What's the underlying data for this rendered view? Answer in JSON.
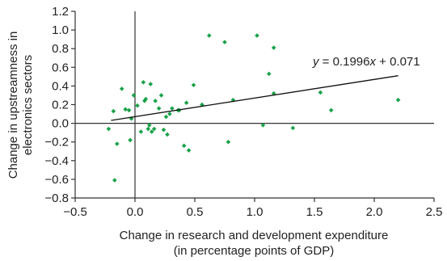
{
  "chart_data": {
    "type": "scatter",
    "xlabel_line1": "Change in research and development expenditure",
    "xlabel_line2": "(in percentage points of GDP)",
    "ylabel_line1": "Change in upstreamness in",
    "ylabel_line2": "electronics sectors",
    "xlim": [
      -0.5,
      2.5
    ],
    "ylim": [
      -0.8,
      1.2
    ],
    "xticks": [
      -0.5,
      0.0,
      0.5,
      1.0,
      1.5,
      2.0,
      2.5
    ],
    "xtick_labels": [
      "−0.5",
      "0.0",
      "0.5",
      "1.0",
      "1.5",
      "2.0",
      "2.5"
    ],
    "yticks": [
      -0.8,
      -0.6,
      -0.4,
      -0.2,
      0.0,
      0.2,
      0.4,
      0.6,
      0.8,
      1.0,
      1.2
    ],
    "ytick_labels": [
      "−0.8",
      "−0.6",
      "−0.4",
      "−0.2",
      "0.0",
      "0.2",
      "0.4",
      "0.6",
      "0.8",
      "1.0",
      "1.2"
    ],
    "marker_color": "#1aa34a",
    "trend_color": "#111111",
    "trendline": {
      "slope": 0.1996,
      "intercept": 0.071,
      "x_start": -0.2,
      "x_end": 2.2
    },
    "equation": {
      "y_var": "y",
      "middle": " = 0.1996",
      "x_var": "x",
      "tail": " + 0.071"
    },
    "points": [
      [
        -0.22,
        -0.06
      ],
      [
        -0.18,
        0.13
      ],
      [
        -0.17,
        -0.61
      ],
      [
        -0.15,
        -0.22
      ],
      [
        -0.11,
        0.37
      ],
      [
        -0.08,
        0.15
      ],
      [
        -0.05,
        0.14
      ],
      [
        -0.04,
        -0.18
      ],
      [
        -0.03,
        0.05
      ],
      [
        -0.01,
        0.3
      ],
      [
        0.02,
        0.19
      ],
      [
        0.05,
        -0.09
      ],
      [
        0.07,
        0.44
      ],
      [
        0.08,
        0.24
      ],
      [
        0.09,
        0.26
      ],
      [
        0.11,
        -0.06
      ],
      [
        0.12,
        -0.02
      ],
      [
        0.13,
        0.42
      ],
      [
        0.14,
        -0.09
      ],
      [
        0.16,
        -0.06
      ],
      [
        0.17,
        0.24
      ],
      [
        0.2,
        0.16
      ],
      [
        0.22,
        0.3
      ],
      [
        0.24,
        -0.07
      ],
      [
        0.26,
        0.07
      ],
      [
        0.27,
        -0.12
      ],
      [
        0.29,
        0.1
      ],
      [
        0.31,
        0.16
      ],
      [
        0.36,
        0.14
      ],
      [
        0.37,
        0.14
      ],
      [
        0.41,
        -0.24
      ],
      [
        0.43,
        0.22
      ],
      [
        0.45,
        -0.29
      ],
      [
        0.49,
        0.41
      ],
      [
        0.56,
        0.2
      ],
      [
        0.62,
        0.94
      ],
      [
        0.75,
        0.87
      ],
      [
        0.78,
        -0.2
      ],
      [
        0.82,
        0.25
      ],
      [
        1.02,
        0.94
      ],
      [
        1.07,
        -0.02
      ],
      [
        1.12,
        0.53
      ],
      [
        1.16,
        0.81
      ],
      [
        1.16,
        0.32
      ],
      [
        1.32,
        -0.05
      ],
      [
        1.55,
        0.33
      ],
      [
        1.64,
        0.14
      ],
      [
        2.2,
        0.25
      ]
    ]
  }
}
